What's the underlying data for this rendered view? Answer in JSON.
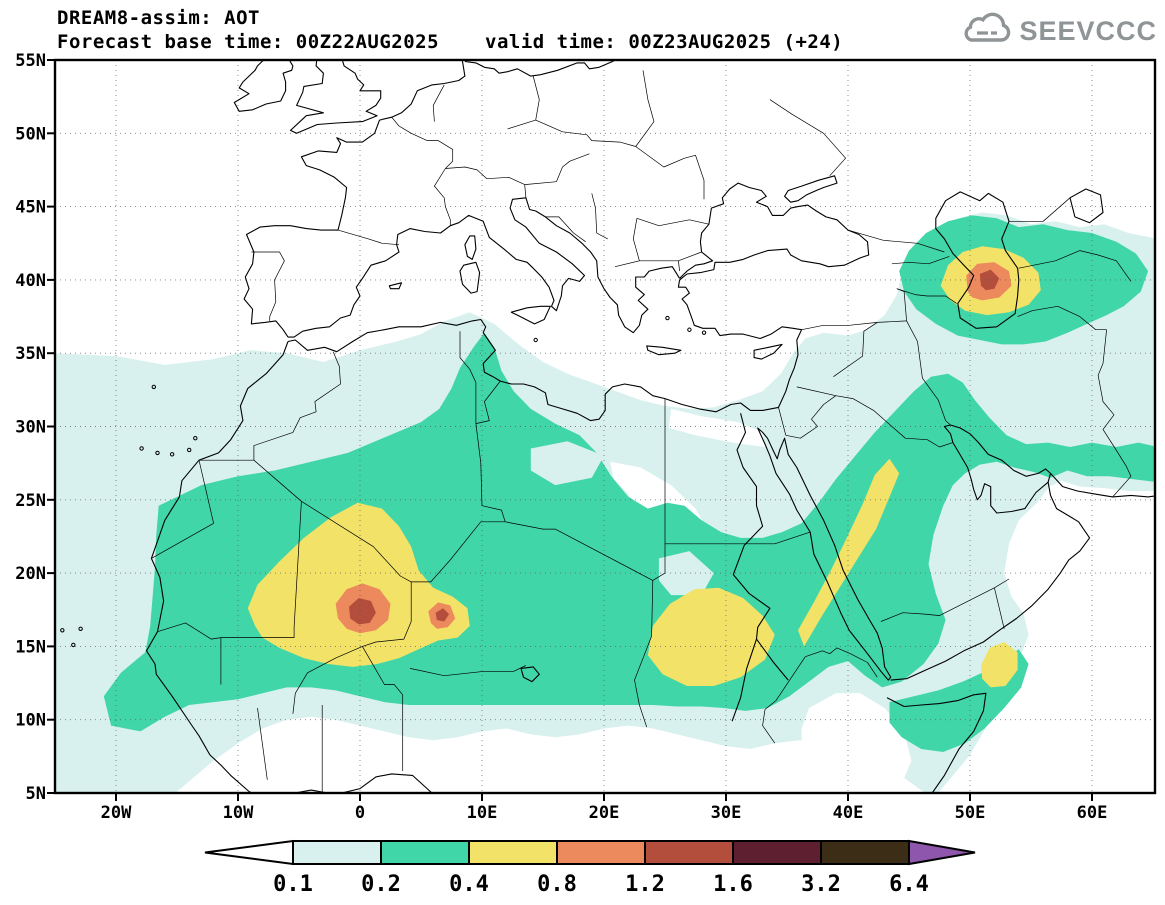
{
  "header": {
    "title": "DREAM8-assim: AOT",
    "base_time": "Forecast base time: 00Z22AUG2025",
    "valid_time": "valid time: 00Z23AUG2025 (+24)"
  },
  "logo": {
    "text": "SEEVCCC"
  },
  "axes": {
    "lat": [
      "55N",
      "50N",
      "45N",
      "40N",
      "35N",
      "30N",
      "25N",
      "20N",
      "15N",
      "10N",
      "5N"
    ],
    "lon": [
      "20W",
      "10W",
      "0",
      "10E",
      "20E",
      "30E",
      "40E",
      "50E",
      "60E"
    ]
  },
  "colorbar": {
    "labels": [
      "0.1",
      "0.2",
      "0.4",
      "0.8",
      "1.2",
      "1.6",
      "3.2",
      "6.4"
    ],
    "colors": [
      "#ffffff",
      "#d8f1ee",
      "#41d6a7",
      "#f2e368",
      "#ec8a5e",
      "#b34d3c",
      "#5e2031",
      "#3c2d17",
      "#8e57ad"
    ]
  },
  "chart_data": {
    "type": "filled-contour-map",
    "variable": "AOT (aerosol optical thickness)",
    "model": "DREAM8-assim",
    "forecast_base_time": "00Z22AUG2025",
    "valid_time": "00Z23AUG2025",
    "lead": "+24",
    "lon_range_deg": [
      -25,
      65
    ],
    "lat_range_deg": [
      5,
      55
    ],
    "contour_levels": [
      0.1,
      0.2,
      0.4,
      0.8,
      1.2,
      1.6,
      3.2,
      6.4
    ],
    "legend_position": "bottom",
    "grid": "dotted 5deg lat / 10deg lon",
    "features": [
      {
        "region": "Sahel maximum, Mali/Niger (~0E, 17N)",
        "peak_aot": "1.2-1.6"
      },
      {
        "region": "Secondary Niger spot (~6.5E, 17N)",
        "peak_aot": "1.2-1.6"
      },
      {
        "region": "SE Caspian / Turkmenistan (~51E, 40N)",
        "peak_aot": "1.2-1.6"
      },
      {
        "region": "Sudan band (~28E, 16N)",
        "peak_aot": "0.4-0.8"
      },
      {
        "region": "Red Sea / W Saudi coast band",
        "peak_aot": "0.4-0.8"
      },
      {
        "region": "Horn of Africa (~52E, 13N)",
        "peak_aot": "0.4-0.8"
      },
      {
        "region": "Background dust belt across Sahara-Arabia-Iran",
        "aot": "0.1-0.4"
      }
    ]
  }
}
